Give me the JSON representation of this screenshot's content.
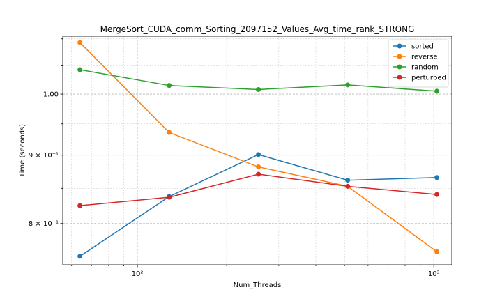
{
  "chart_data": {
    "type": "line",
    "title": "MergeSort_CUDA_comm_Sorting_2097152_Values_Avg_time_rank_STRONG",
    "xlabel": "Num_Threads",
    "ylabel": "Time (seconds)",
    "x_scale": "log",
    "y_scale": "log",
    "x": [
      64,
      128,
      256,
      512,
      1024
    ],
    "xlim": [
      56,
      1150
    ],
    "ylim": [
      0.745,
      1.105
    ],
    "x_ticks": [
      {
        "value": 100,
        "label": "10²"
      },
      {
        "value": 1000,
        "label": "10³"
      }
    ],
    "y_ticks": [
      {
        "value": 0.8,
        "label": "8 × 10⁻¹"
      },
      {
        "value": 0.9,
        "label": "9 × 10⁻¹"
      },
      {
        "value": 1.0,
        "label": "1.00"
      }
    ],
    "grid": true,
    "legend_position": "top-right",
    "series": [
      {
        "name": "sorted",
        "color": "#1f77b4",
        "values": [
          0.756,
          0.838,
          0.901,
          0.862,
          0.866
        ]
      },
      {
        "name": "reverse",
        "color": "#ff7f0e",
        "values": [
          1.093,
          0.936,
          0.882,
          0.853,
          0.762
        ]
      },
      {
        "name": "random",
        "color": "#2ca02c",
        "values": [
          1.043,
          1.015,
          1.008,
          1.016,
          1.005
        ]
      },
      {
        "name": "perturbed",
        "color": "#d62728",
        "values": [
          0.825,
          0.837,
          0.871,
          0.853,
          0.841
        ]
      }
    ]
  }
}
